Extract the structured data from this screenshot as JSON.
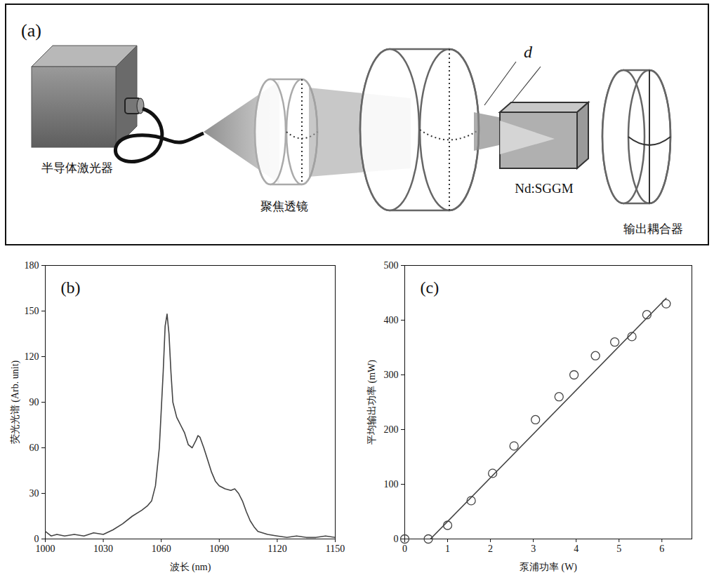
{
  "diagram": {
    "panel_label": "(a)",
    "labels": {
      "laser": "半导体激光器",
      "lens": "聚焦透镜",
      "distance": "d",
      "crystal": "Nd:SGGM",
      "coupler": "输出耦合器"
    }
  },
  "chart_data": [
    {
      "type": "line",
      "panel_label": "(b)",
      "x_label": "波长 (nm)",
      "y_label": "荧光光谱 (Arb. unit)",
      "x": [
        1000,
        1003,
        1006,
        1010,
        1015,
        1020,
        1025,
        1030,
        1035,
        1040,
        1045,
        1050,
        1053,
        1055,
        1057,
        1059,
        1061,
        1062,
        1063,
        1064,
        1065,
        1066,
        1068,
        1070,
        1072,
        1074,
        1076,
        1078,
        1079,
        1080,
        1082,
        1084,
        1086,
        1088,
        1090,
        1093,
        1096,
        1098,
        1100,
        1102,
        1104,
        1106,
        1108,
        1110,
        1115,
        1120,
        1125,
        1130,
        1135,
        1140,
        1145,
        1150
      ],
      "values": [
        5,
        2,
        3,
        2,
        3,
        2,
        4,
        3,
        6,
        10,
        15,
        19,
        22,
        25,
        35,
        60,
        110,
        140,
        148,
        135,
        110,
        90,
        80,
        75,
        70,
        62,
        60,
        65,
        68,
        67,
        60,
        52,
        44,
        38,
        35,
        33,
        32,
        33,
        30,
        25,
        18,
        12,
        8,
        5,
        3,
        2,
        1,
        2,
        1,
        1,
        2,
        1
      ],
      "color": "#444444",
      "xlim": [
        1000,
        1150
      ],
      "xticks": [
        1000,
        1030,
        1060,
        1090,
        1120,
        1150
      ],
      "ylim": [
        0,
        180
      ],
      "yticks": [
        0,
        30,
        60,
        90,
        120,
        150,
        180
      ],
      "grid": false
    },
    {
      "type": "scatter",
      "panel_label": "(c)",
      "x_label": "泵浦功率 (W)",
      "y_label": "平均输出功率 (mW)",
      "series": [
        {
          "type": "scatter",
          "marker": "circle",
          "color": "#444444",
          "x": [
            0,
            0.55,
            1.0,
            1.55,
            2.05,
            2.55,
            3.05,
            3.6,
            3.95,
            4.45,
            4.9,
            5.3,
            5.65,
            6.1
          ],
          "values": [
            0,
            0,
            25,
            70,
            120,
            170,
            218,
            260,
            300,
            335,
            360,
            370,
            410,
            430
          ]
        },
        {
          "type": "line",
          "color": "#444444",
          "x": [
            0.6,
            6.1
          ],
          "values": [
            0,
            440
          ]
        }
      ],
      "xlim": [
        0,
        6.7
      ],
      "xticks": [
        0,
        1,
        2,
        3,
        4,
        5,
        6
      ],
      "ylim": [
        0,
        500
      ],
      "yticks": [
        0,
        100,
        200,
        300,
        400,
        500
      ],
      "grid": false
    }
  ]
}
